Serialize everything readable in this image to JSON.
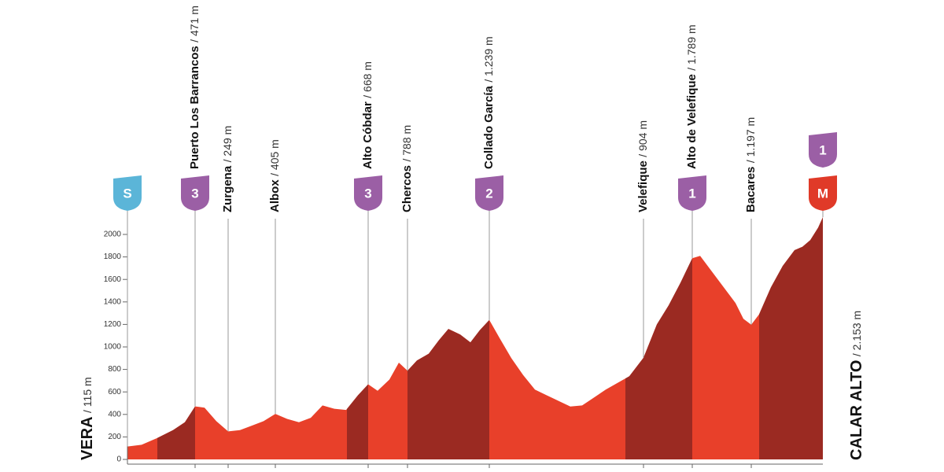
{
  "chart_data": {
    "type": "area",
    "values": [
      115,
      130,
      190,
      260,
      330,
      471,
      460,
      340,
      249,
      260,
      300,
      340,
      405,
      360,
      330,
      370,
      480,
      450,
      440,
      570,
      668,
      610,
      710,
      860,
      788,
      880,
      940,
      1060,
      1160,
      1110,
      1040,
      1150,
      1239,
      1080,
      900,
      750,
      620,
      570,
      520,
      470,
      480,
      550,
      620,
      680,
      740,
      904,
      1200,
      1370,
      1570,
      1789,
      1810,
      1670,
      1530,
      1390,
      1250,
      1197,
      1290,
      1530,
      1720,
      1860,
      1890,
      1950,
      2060,
      2153
    ],
    "ylim": [
      0,
      2000
    ],
    "yticks": [
      0,
      200,
      400,
      600,
      800,
      1000,
      1200,
      1400,
      1600,
      1800,
      2000
    ],
    "color": "#e8402a",
    "climb_color": "#9b2a22",
    "start": {
      "name": "VERA",
      "elevation": "/ 115 m",
      "badge": "S"
    },
    "finish": {
      "name": "CALAR ALTO",
      "elevation": "/ 2.153 m",
      "badges": [
        "1",
        "M"
      ]
    },
    "waypoints": [
      {
        "name": "Puerto Los Barrancos",
        "elevation": "/ 471 m",
        "badge": "3"
      },
      {
        "name": "Zurgena",
        "elevation": "/ 249 m"
      },
      {
        "name": "Albox",
        "elevation": "/ 405 m"
      },
      {
        "name": "Alto Cóbdar",
        "elevation": "/ 668 m",
        "badge": "3"
      },
      {
        "name": "Chercos",
        "elevation": "/ 788 m"
      },
      {
        "name": "Collado García",
        "elevation": "/ 1.239 m",
        "badge": "2"
      },
      {
        "name": "Velefique",
        "elevation": "/ 904 m"
      },
      {
        "name": "Alto de Velefique",
        "elevation": "/ 1.789 m",
        "badge": "1"
      },
      {
        "name": "Bacares",
        "elevation": "/ 1.197 m"
      }
    ]
  }
}
